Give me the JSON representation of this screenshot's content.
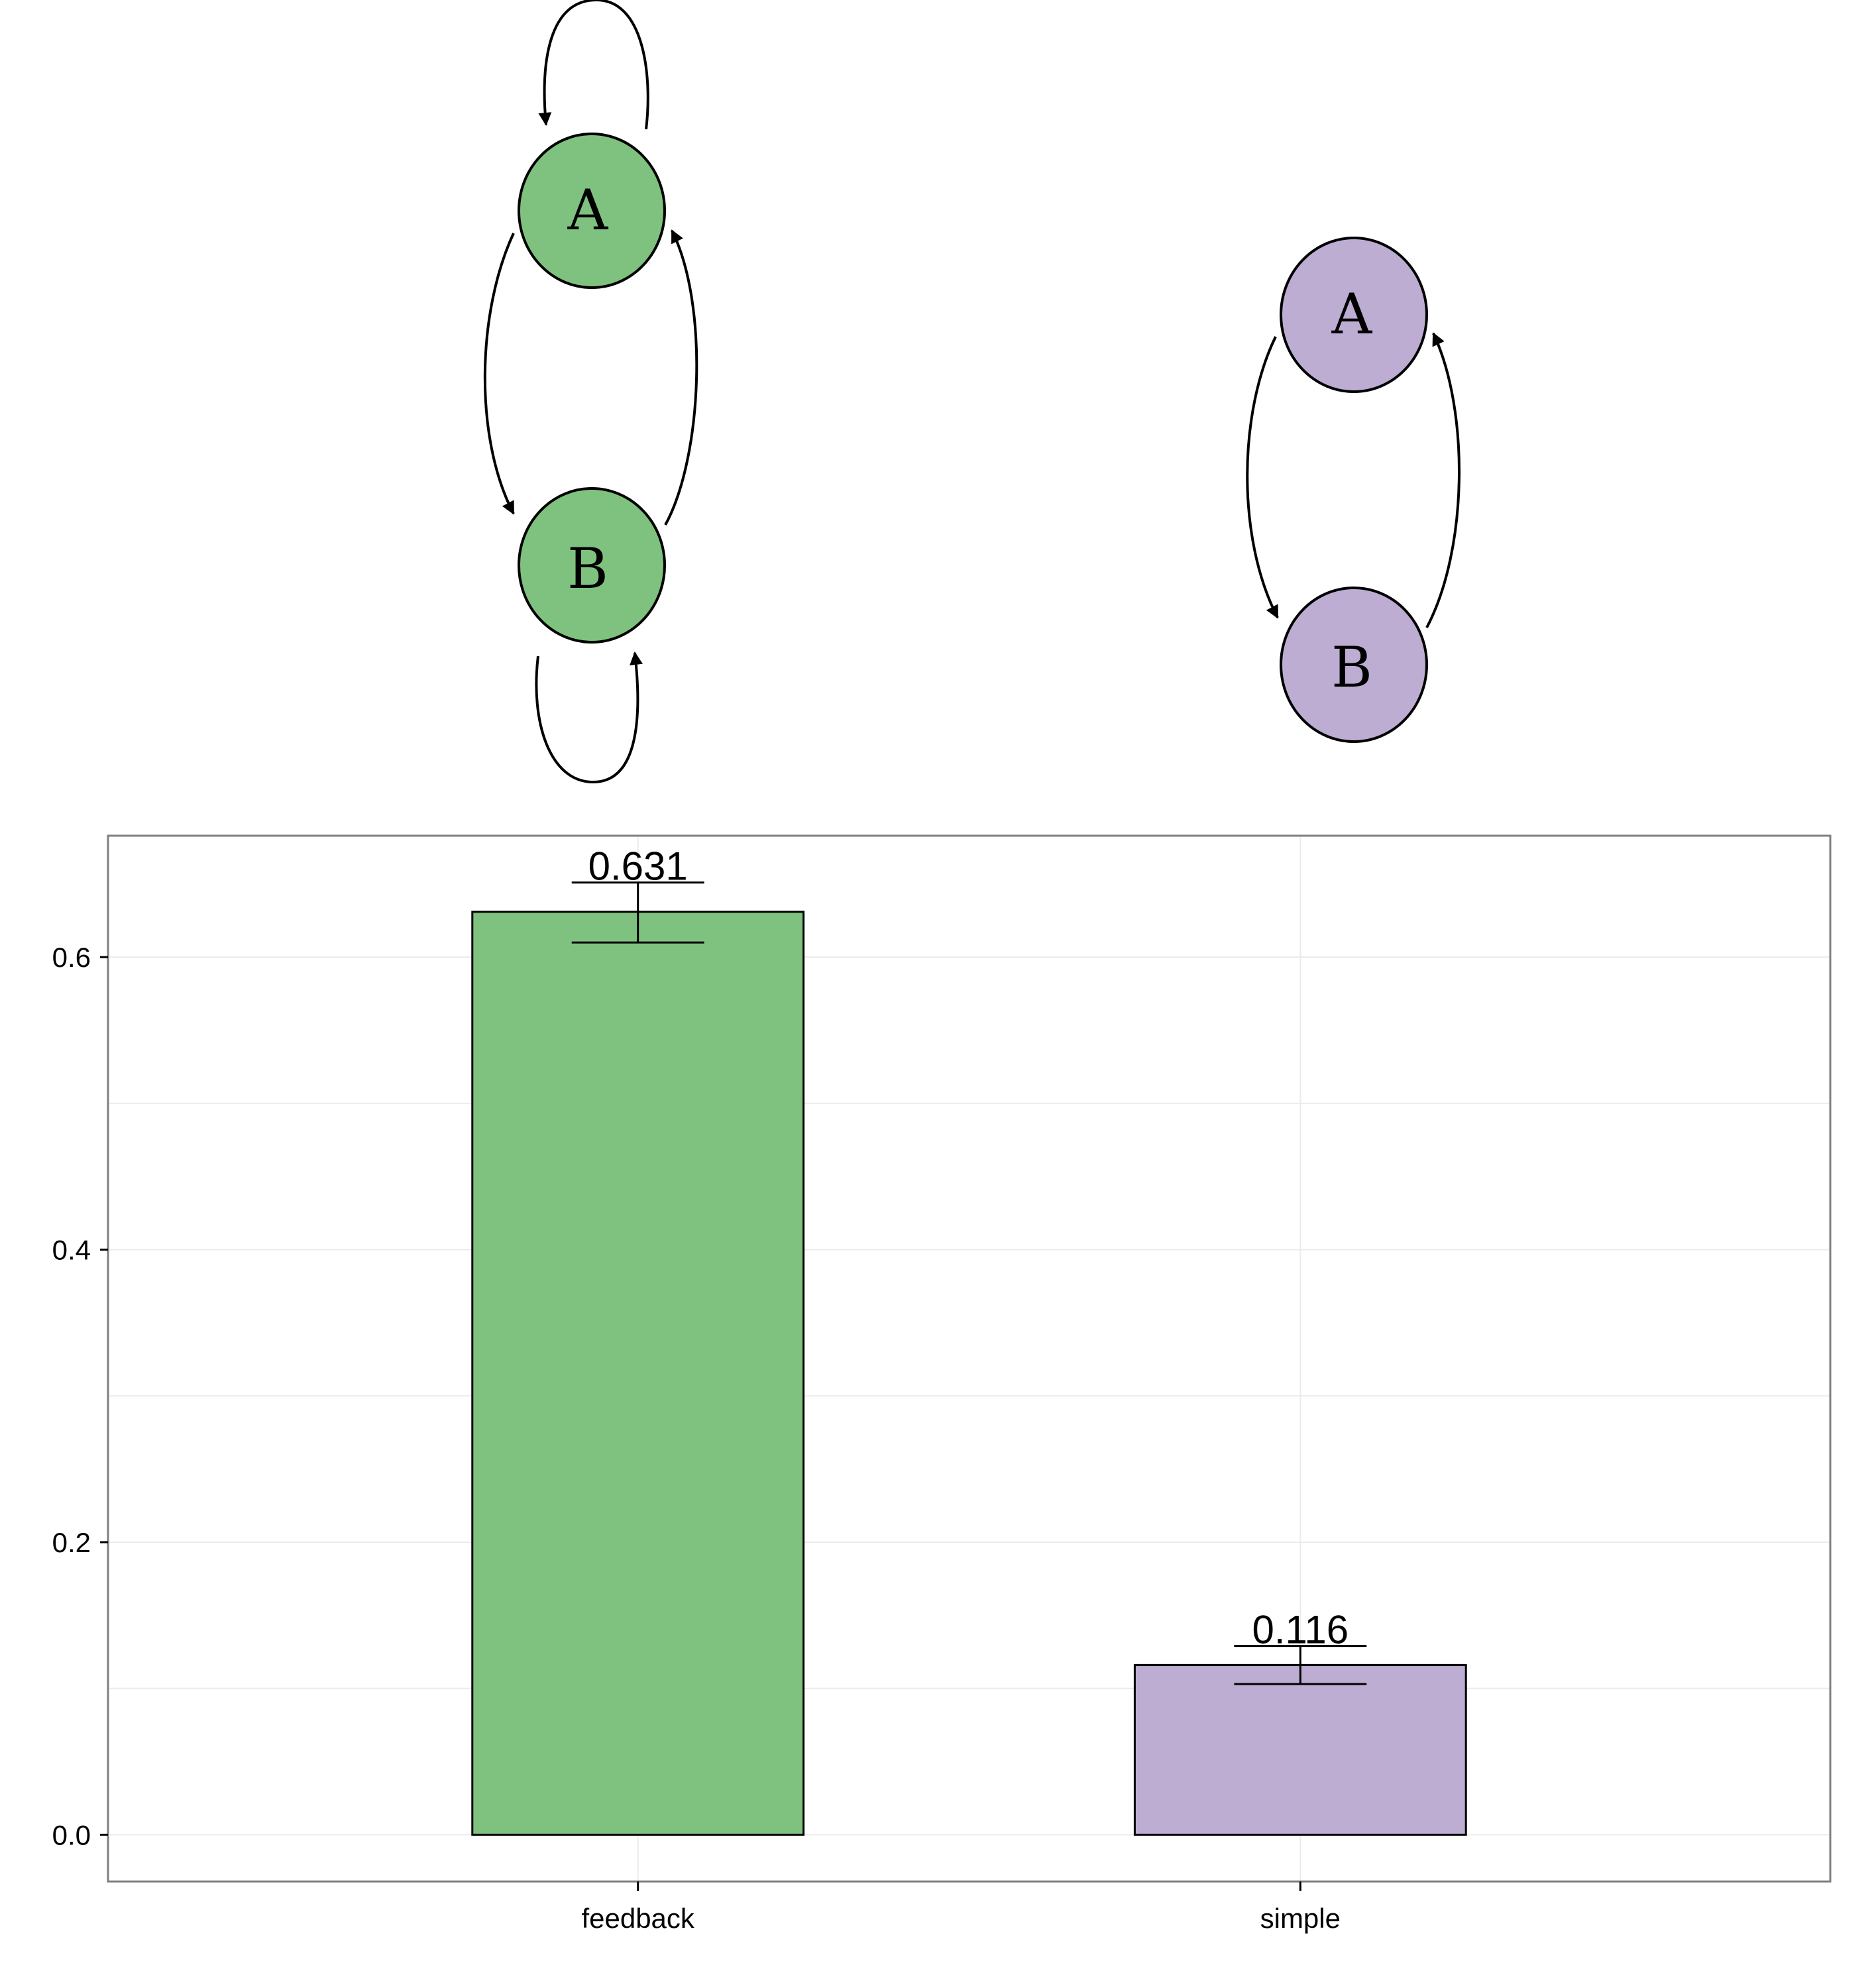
{
  "diagrams": [
    {
      "name": "feedback",
      "color": "#7fc27f",
      "nodes": [
        {
          "label": "A"
        },
        {
          "label": "B"
        }
      ],
      "edges": [
        "A->A",
        "A->B",
        "B->A",
        "B->B"
      ]
    },
    {
      "name": "simple",
      "color": "#bdadd2",
      "nodes": [
        {
          "label": "A"
        },
        {
          "label": "B"
        }
      ],
      "edges": [
        "A->B",
        "B->A"
      ]
    }
  ],
  "chart_data": {
    "type": "bar",
    "categories": [
      "feedback",
      "simple"
    ],
    "values": [
      0.631,
      0.116
    ],
    "error_low": [
      0.61,
      0.103
    ],
    "error_high": [
      0.651,
      0.129
    ],
    "data_labels": [
      "0.631",
      "0.116"
    ],
    "colors": [
      "#7fc27f",
      "#bdadd2"
    ],
    "title": "",
    "xlabel": "",
    "ylabel": "",
    "ylim": [
      -0.032,
      0.683
    ],
    "yticks": [
      0.0,
      0.2,
      0.4,
      0.6
    ],
    "ytick_labels": [
      "0.0",
      "0.2",
      "0.4",
      "0.6"
    ],
    "grid": true,
    "legend": "none"
  }
}
